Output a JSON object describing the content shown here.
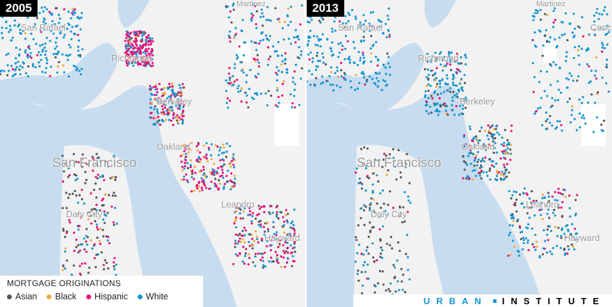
{
  "panels": [
    {
      "year": "2005"
    },
    {
      "year": "2013"
    }
  ],
  "legend": {
    "title": "MORTGAGE ORIGINATIONS",
    "items": [
      {
        "label": "Asian",
        "color": "#555555"
      },
      {
        "label": "Black",
        "color": "#f5a742"
      },
      {
        "label": "Hispanic",
        "color": "#e5127a"
      },
      {
        "label": "White",
        "color": "#1696d2"
      }
    ]
  },
  "places_left": [
    "San Rafael",
    "Richmond",
    "Berkeley",
    "Oakland",
    "San Francisco",
    "Daly City",
    "Leandro",
    "Hayward",
    "Martinez"
  ],
  "places_right": [
    "San Rafael",
    "Richmond",
    "Berkeley",
    "Oakland",
    "San Francisco",
    "Daly City",
    "Leandro",
    "Hayward",
    "Martinez",
    "Conc"
  ],
  "colors": {
    "water": "#c7dcef",
    "land": "#f2f2f2",
    "park": "#ffffff"
  },
  "brand": {
    "left": "URBAN",
    "right": "INSTITUTE",
    "left_color": "#1696d2",
    "right_color": "#000000"
  }
}
